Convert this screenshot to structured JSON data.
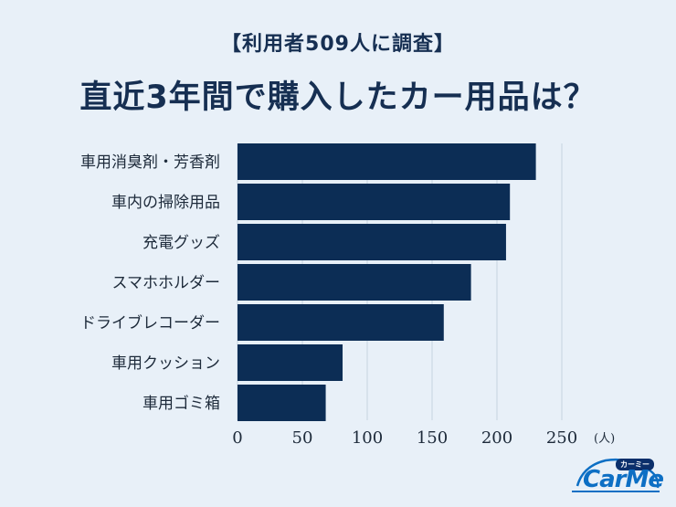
{
  "header": {
    "subtitle": "【利用者509人に調査】",
    "title": "直近3年間で購入したカー用品は？"
  },
  "colors": {
    "background": "#e8f0f8",
    "bar": "#0c2d55",
    "title": "#162f52",
    "grid": "#c6d3e0"
  },
  "chart_data": {
    "type": "bar",
    "orientation": "horizontal",
    "categories": [
      "車用消臭剤・芳香剤",
      "車内の掃除用品",
      "充電グッズ",
      "スマホホルダー",
      "ドライブレコーダー",
      "車用クッション",
      "車用ゴミ箱"
    ],
    "values": [
      230,
      210,
      207,
      180,
      159,
      81,
      68
    ],
    "xlim": [
      0,
      250
    ],
    "xticks": [
      0,
      50,
      100,
      150,
      200,
      250
    ],
    "tick_labels": [
      "0",
      "50",
      "100",
      "150",
      "200",
      "250"
    ],
    "unit": "(人)",
    "grid": true
  },
  "logo": {
    "tag": "カーミー",
    "word": "CarMe"
  }
}
